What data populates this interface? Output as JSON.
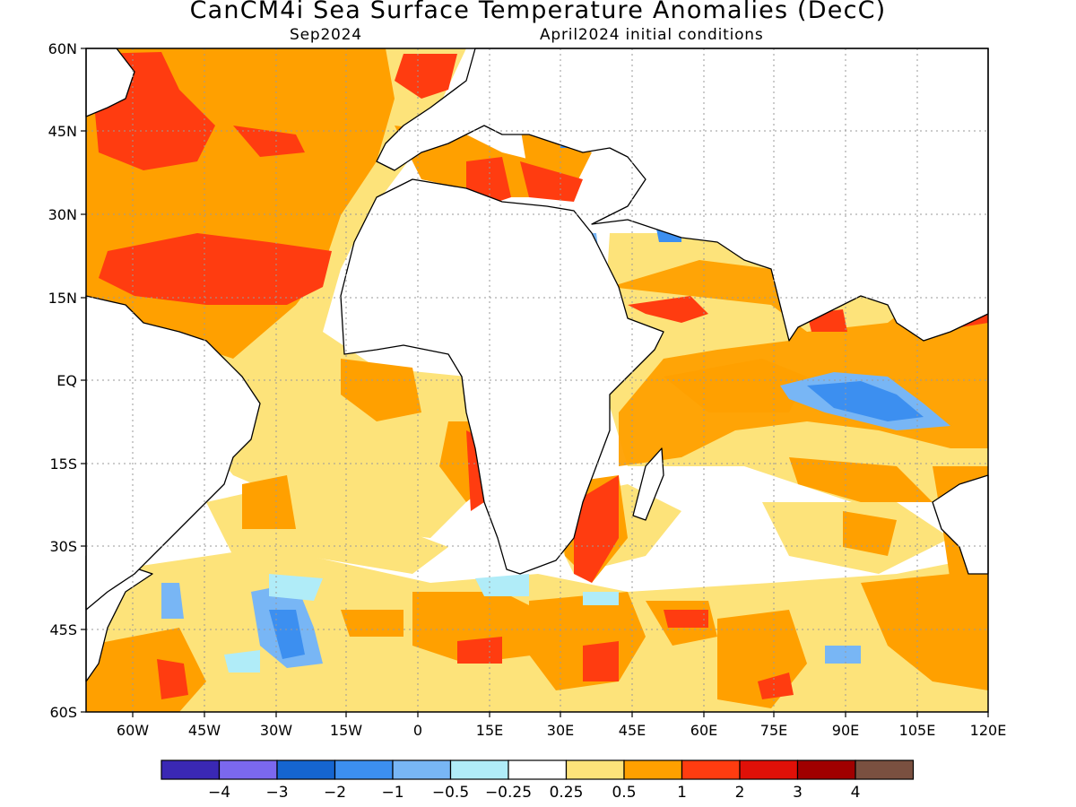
{
  "title": "CanCM4i Sea Surface Temperature Anomalies (DecC)",
  "subtitle_left": "Sep2024",
  "subtitle_right": "April2024 initial conditions",
  "lat_labels": [
    "60N",
    "45N",
    "30N",
    "15N",
    "EQ",
    "15S",
    "30S",
    "45S",
    "60S"
  ],
  "lon_labels": [
    "60W",
    "45W",
    "30W",
    "15W",
    "0",
    "15E",
    "30E",
    "45E",
    "60E",
    "75E",
    "90E",
    "105E",
    "120E"
  ],
  "colorbar": {
    "colors": [
      "#3a28b4",
      "#7b68ee",
      "#1565d0",
      "#3c8ff0",
      "#78b6f5",
      "#b0ecf8",
      "#ffffff",
      "#fde37a",
      "#ffa000",
      "#ff3c10",
      "#e01008",
      "#a00000",
      "#7a5040"
    ],
    "labels": [
      "−4",
      "−3",
      "−2",
      "−1",
      "−0.5",
      "−0.25",
      "0.25",
      "0.5",
      "1",
      "2",
      "3",
      "4"
    ]
  }
}
